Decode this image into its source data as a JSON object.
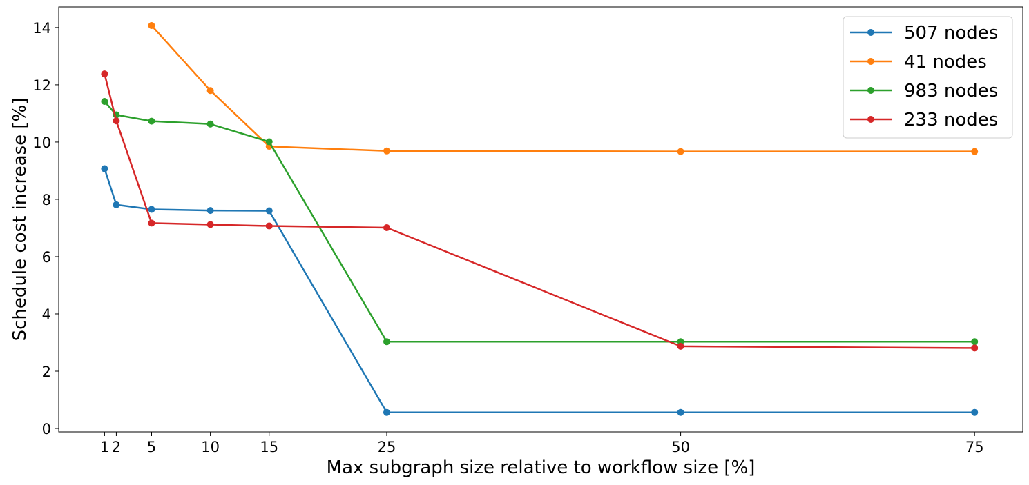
{
  "chart_data": {
    "type": "line",
    "title": "",
    "xlabel": "Max subgraph size relative to workflow size [%]",
    "ylabel": "Schedule cost increase [%]",
    "xlim": [
      -2.9,
      79.1
    ],
    "ylim": [
      -0.12,
      14.72
    ],
    "x_ticks": [
      1,
      2,
      5,
      10,
      15,
      25,
      50,
      75
    ],
    "y_ticks": [
      0,
      2,
      4,
      6,
      8,
      10,
      12,
      14
    ],
    "grid": false,
    "legend_position": "top-right",
    "series": [
      {
        "name": "507 nodes",
        "color": "#1f77b4",
        "x": [
          1,
          2,
          5,
          10,
          15,
          25,
          50,
          75
        ],
        "y": [
          9.07,
          7.81,
          7.65,
          7.61,
          7.6,
          0.56,
          0.56,
          0.56
        ]
      },
      {
        "name": "41 nodes",
        "color": "#ff7f0e",
        "x": [
          5,
          10,
          15,
          25,
          50,
          75
        ],
        "y": [
          14.07,
          11.8,
          9.85,
          9.69,
          9.67,
          9.67
        ]
      },
      {
        "name": "983 nodes",
        "color": "#2ca02c",
        "x": [
          1,
          2,
          5,
          10,
          15,
          25,
          50,
          75
        ],
        "y": [
          11.42,
          10.95,
          10.73,
          10.63,
          10.01,
          3.03,
          3.03,
          3.03
        ]
      },
      {
        "name": "233 nodes",
        "color": "#d62728",
        "x": [
          1,
          2,
          5,
          10,
          15,
          25,
          50,
          75
        ],
        "y": [
          12.38,
          10.74,
          7.17,
          7.12,
          7.07,
          7.01,
          2.87,
          2.81
        ]
      }
    ]
  }
}
